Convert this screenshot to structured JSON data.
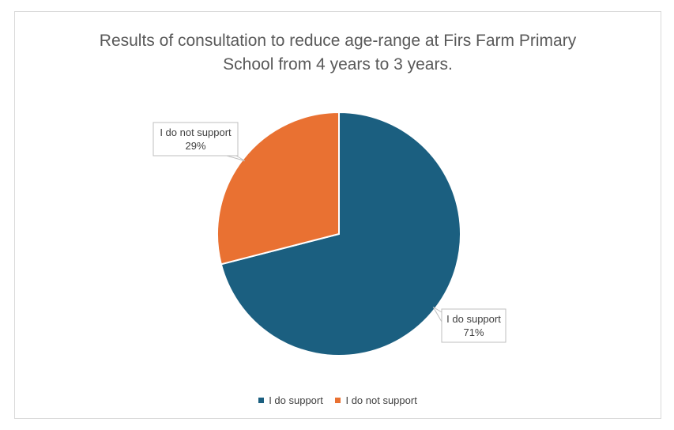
{
  "chart_data": {
    "type": "pie",
    "title": "Results of consultation to reduce age-range at Firs Farm Primary School from 4 years to 3 years.",
    "title_lines": [
      "Results of consultation to reduce age-range at Firs Farm Primary",
      "School from 4 years to 3 years."
    ],
    "categories": [
      "I do support",
      "I do not support"
    ],
    "values": [
      71,
      29
    ],
    "data_labels": [
      {
        "name": "I do support",
        "percent": "71%"
      },
      {
        "name": "I do not support",
        "percent": "29%"
      }
    ],
    "colors": [
      "#1b5f80",
      "#e97132"
    ],
    "legend_position": "bottom"
  },
  "legend": [
    {
      "label": "I do support",
      "color": "#1b5f80"
    },
    {
      "label": "I do not support",
      "color": "#e97132"
    }
  ]
}
